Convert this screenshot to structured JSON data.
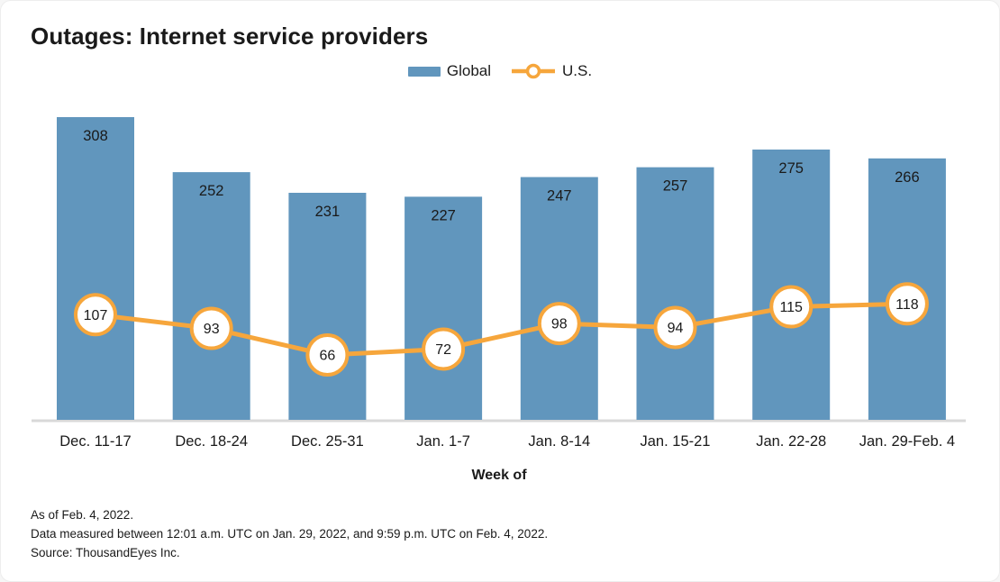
{
  "title": "Outages: Internet service providers",
  "legend": {
    "global_label": "Global",
    "us_label": "U.S."
  },
  "colors": {
    "bar_blue": "#6196BD",
    "line_orange": "#F6A63C",
    "text_dark": "#1a1a1a",
    "axis_gray": "#d9d9d9",
    "marker_fill": "#ffffff"
  },
  "chart_data": {
    "type": "bar",
    "subtype": "bar-line-combo",
    "categories": [
      "Dec. 11-17",
      "Dec. 18-24",
      "Dec. 25-31",
      "Jan. 1-7",
      "Jan. 8-14",
      "Jan. 15-21",
      "Jan. 22-28",
      "Jan. 29-Feb. 4"
    ],
    "series": [
      {
        "name": "Global",
        "type": "bar",
        "color": "#6196BD",
        "values": [
          308,
          252,
          231,
          227,
          247,
          257,
          275,
          266
        ]
      },
      {
        "name": "U.S.",
        "type": "line",
        "color": "#F6A63C",
        "values": [
          107,
          93,
          66,
          72,
          98,
          94,
          115,
          118
        ]
      }
    ],
    "title": "Outages: Internet service providers",
    "xlabel": "Week of",
    "ylabel": "",
    "ylim": [
      0,
      330
    ],
    "grid": false,
    "legend_position": "top-center",
    "data_labels": true
  },
  "footnotes": [
    "As of Feb. 4, 2022.",
    "Data measured between 12:01 a.m. UTC on Jan. 29, 2022, and 9:59 p.m. UTC on Feb. 4, 2022.",
    "Source: ThousandEyes Inc."
  ]
}
